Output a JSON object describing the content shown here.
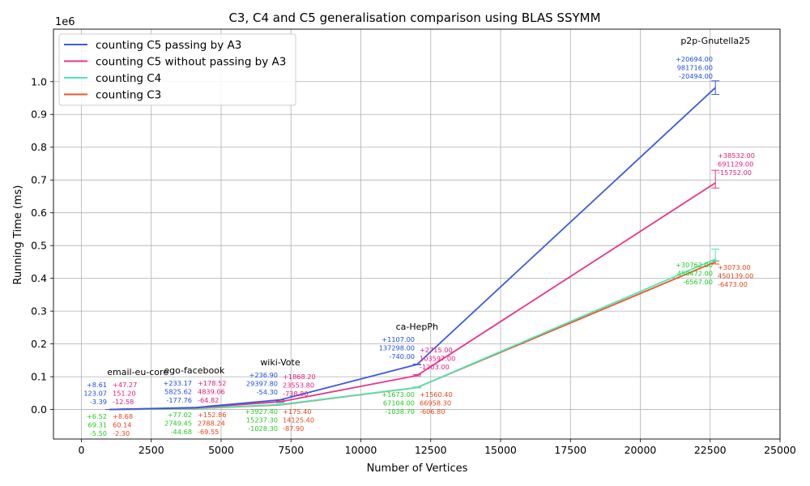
{
  "chart_data": {
    "type": "line",
    "title": "C3, C4 and C5 generalisation comparison using BLAS SSYMM",
    "xlabel": "Number of Vertices",
    "ylabel": "Running Time (ms)",
    "offset_text": "1e6",
    "xlim": [
      -1000,
      25000
    ],
    "ylim": [
      -90000,
      1160000
    ],
    "xticks": [
      0,
      2500,
      5000,
      7500,
      10000,
      12500,
      15000,
      17500,
      20000,
      22500,
      25000
    ],
    "xtick_labels": [
      "0",
      "2500",
      "5000",
      "7500",
      "10000",
      "12500",
      "15000",
      "17500",
      "20000",
      "22500",
      "25000"
    ],
    "yticks": [
      0,
      100000,
      200000,
      300000,
      400000,
      500000,
      600000,
      700000,
      800000,
      900000,
      1000000
    ],
    "ytick_labels": [
      "0.0",
      "0.1",
      "0.2",
      "0.3",
      "0.4",
      "0.5",
      "0.6",
      "0.7",
      "0.8",
      "0.9",
      "1.0"
    ],
    "grid": true,
    "legend_position": "top-left",
    "x": [
      1005,
      4039,
      7115,
      12008,
      22687
    ],
    "series": [
      {
        "name": "counting C5 passing by A3",
        "color": "#3b5bdb",
        "values": [
          123.07,
          5825.62,
          29397.8,
          137298.0,
          981716.0
        ],
        "err_plus": [
          "+8.61",
          "+233.17",
          "+236.90",
          "+1107.00",
          "+20694.00"
        ],
        "err_minus": [
          "-3.39",
          "-177.76",
          "-54.30",
          "-740.00",
          "-20494.00"
        ],
        "err_plus_val": [
          8.61,
          233.17,
          236.9,
          1107.0,
          20694.0
        ],
        "err_minus_val": [
          3.39,
          177.76,
          54.3,
          740.0,
          20494.0
        ]
      },
      {
        "name": "counting C5 without passing by A3",
        "color": "#e8348a",
        "values": [
          151.2,
          4839.06,
          23553.8,
          103597.0,
          691129.0
        ],
        "err_plus": [
          "+47.27",
          "+178.52",
          "+1868.20",
          "+2715.00",
          "+38532.00"
        ],
        "err_minus": [
          "-12.58",
          "-64.82",
          "-738.80",
          "-1203.00",
          "-15752.00"
        ],
        "err_plus_val": [
          47.27,
          178.52,
          1868.2,
          2715.0,
          38532.0
        ],
        "err_minus_val": [
          12.58,
          64.82,
          738.8,
          1203.0,
          15752.0
        ]
      },
      {
        "name": "counting C4",
        "color": "#4de8b0",
        "values": [
          69.31,
          2749.45,
          15237.3,
          67104.0,
          458472.0
        ],
        "err_plus": [
          "+6.52",
          "+77.02",
          "+3927.40",
          "+1673.00",
          "+30762.00"
        ],
        "err_minus": [
          "-5.50",
          "-44.68",
          "-1028.30",
          "-1038.70",
          "-6567.00"
        ],
        "err_plus_val": [
          6.52,
          77.02,
          3927.4,
          1673.0,
          30762.0
        ],
        "err_minus_val": [
          5.5,
          44.68,
          1028.3,
          1038.7,
          6567.0
        ]
      },
      {
        "name": "counting C3",
        "color": "#f0522a",
        "values": [
          60.14,
          2788.24,
          14125.4,
          66958.3,
          450139.0
        ],
        "err_plus": [
          "+8.68",
          "+152.86",
          "+175.40",
          "+1560.40",
          "+3073.00"
        ],
        "err_minus": [
          "-2.30",
          "-69.55",
          "-87.90",
          "-606.80",
          "-6473.00"
        ],
        "err_plus_val": [
          8.68,
          152.86,
          175.4,
          1560.4,
          3073.0
        ],
        "err_minus_val": [
          2.3,
          69.55,
          87.9,
          606.8,
          6473.0
        ]
      }
    ],
    "annotations": [
      {
        "text": "email-eu-core",
        "x": 1005
      },
      {
        "text": "ego-facebook",
        "x": 4039
      },
      {
        "text": "wiki-Vote",
        "x": 7115
      },
      {
        "text": "ca-HepPh",
        "x": 12008
      },
      {
        "text": "p2p-Gnutella25",
        "x": 22687
      }
    ],
    "label_colors": {
      "blue": "#1f4fe0",
      "pink": "#e8197d",
      "green": "#22cc22",
      "orange": "#e8451a"
    }
  }
}
